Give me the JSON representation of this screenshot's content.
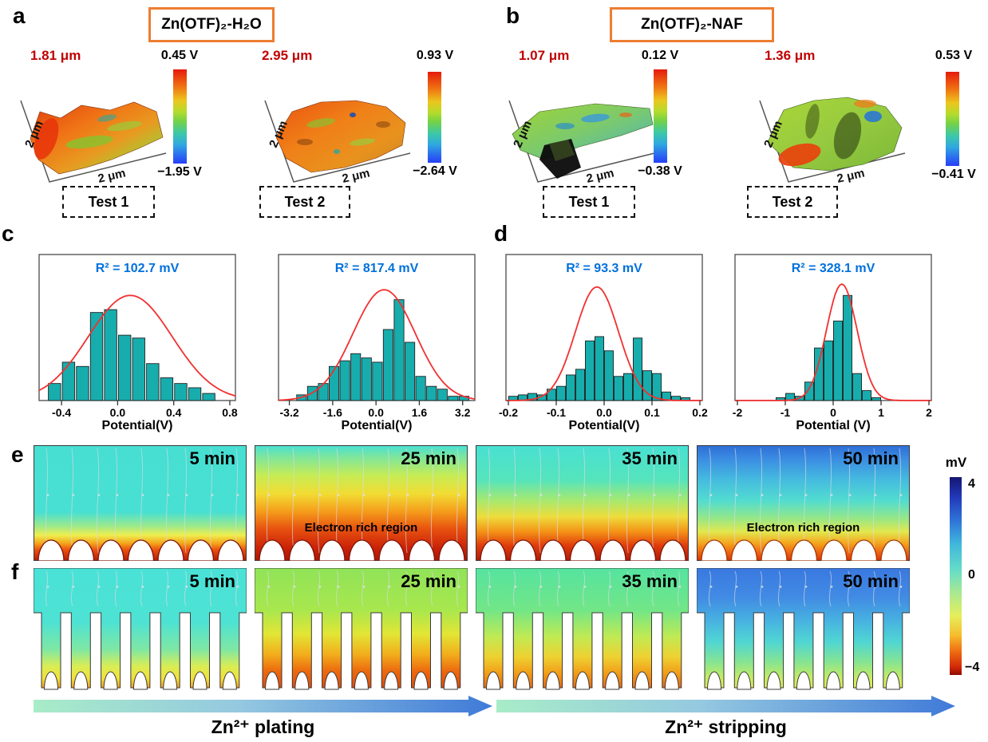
{
  "figure": {
    "letters": {
      "a": "a",
      "b": "b",
      "c": "c",
      "d": "d",
      "e": "e",
      "f": "f"
    },
    "headers": {
      "a": "Zn(OTF)₂-H₂O",
      "b": "Zn(OTF)₂-NAF"
    }
  },
  "kpfm_panels": [
    {
      "id": "a1",
      "roughness": "1.81 μm",
      "colorbar_top": "0.45 V",
      "colorbar_bottom": "−1.95 V",
      "axis_left_label": "2 μm",
      "axis_bottom_label": "2 μm",
      "test_label": "Test 1"
    },
    {
      "id": "a2",
      "roughness": "2.95 μm",
      "colorbar_top": "0.93 V",
      "colorbar_bottom": "−2.64 V",
      "axis_left_label": "2 μm",
      "axis_bottom_label": "2 μm",
      "test_label": "Test 2"
    },
    {
      "id": "b1",
      "roughness": "1.07 μm",
      "colorbar_top": "0.12 V",
      "colorbar_bottom": "−0.38 V",
      "axis_left_label": "2 μm",
      "axis_bottom_label": "2 μm",
      "test_label": "Test 1"
    },
    {
      "id": "b2",
      "roughness": "1.36 μm",
      "colorbar_top": "0.53 V",
      "colorbar_bottom": "−0.41 V",
      "axis_left_label": "2 μm",
      "axis_bottom_label": "2 μm",
      "test_label": "Test 2"
    }
  ],
  "chart_data": [
    {
      "type": "bar",
      "title": "R² = 102.7 mV",
      "xlabel": "Potential(V)",
      "xlim": [
        -0.56,
        0.84
      ],
      "ticks": [
        -0.4,
        0.0,
        0.4,
        0.8
      ],
      "tick_labels": [
        "-0.4",
        "0.0",
        "0.4",
        "0.8"
      ],
      "bar_width": 0.088,
      "bars": [
        [
          -0.45,
          0.12
        ],
        [
          -0.35,
          0.27
        ],
        [
          -0.25,
          0.24
        ],
        [
          -0.15,
          0.62
        ],
        [
          -0.05,
          0.64
        ],
        [
          0.05,
          0.46
        ],
        [
          0.15,
          0.44
        ],
        [
          0.25,
          0.26
        ],
        [
          0.35,
          0.16
        ],
        [
          0.45,
          0.12
        ],
        [
          0.55,
          0.09
        ],
        [
          0.65,
          0.05
        ]
      ],
      "gauss": {
        "mu": 0.09,
        "sigma": 0.3,
        "amp": 0.74
      },
      "ylim": [
        0,
        1
      ],
      "grid": false,
      "legend": "none"
    },
    {
      "type": "bar",
      "title": "R² = 817.4 mV",
      "xlabel": "Potential(V)",
      "xlim": [
        -3.6,
        3.65
      ],
      "ticks": [
        -3.2,
        -1.6,
        0.0,
        1.6,
        3.2
      ],
      "tick_labels": [
        "-3.2",
        "-1.6",
        "0.0",
        "1.6",
        "3.2"
      ],
      "bar_width": 0.36,
      "bars": [
        [
          -2.75,
          0.04
        ],
        [
          -2.35,
          0.1
        ],
        [
          -1.95,
          0.12
        ],
        [
          -1.55,
          0.24
        ],
        [
          -1.15,
          0.28
        ],
        [
          -0.75,
          0.33
        ],
        [
          -0.35,
          0.3
        ],
        [
          0.05,
          0.27
        ],
        [
          0.45,
          0.5
        ],
        [
          0.85,
          0.71
        ],
        [
          1.25,
          0.41
        ],
        [
          1.65,
          0.17
        ],
        [
          2.05,
          0.1
        ],
        [
          2.45,
          0.08
        ],
        [
          2.85,
          0.03
        ],
        [
          3.25,
          0.03
        ]
      ],
      "gauss": {
        "mu": 0.3,
        "sigma": 1.15,
        "amp": 0.78
      },
      "ylim": [
        0,
        1
      ],
      "grid": false,
      "legend": "none"
    },
    {
      "type": "bar",
      "title": "R² = 93.3 mV",
      "xlabel": "Potential(V)",
      "xlim": [
        -0.205,
        0.205
      ],
      "ticks": [
        -0.2,
        -0.1,
        0.0,
        0.1,
        0.2
      ],
      "tick_labels": [
        "-0.2",
        "-0.1",
        "0.0",
        "0.1",
        "0.2"
      ],
      "bar_width": 0.0185,
      "bars": [
        [
          -0.19,
          0.03
        ],
        [
          -0.17,
          0.04
        ],
        [
          -0.15,
          0.05
        ],
        [
          -0.13,
          0.04
        ],
        [
          -0.11,
          0.08
        ],
        [
          -0.09,
          0.1
        ],
        [
          -0.07,
          0.18
        ],
        [
          -0.05,
          0.22
        ],
        [
          -0.03,
          0.42
        ],
        [
          -0.01,
          0.45
        ],
        [
          0.01,
          0.35
        ],
        [
          0.03,
          0.17
        ],
        [
          0.05,
          0.19
        ],
        [
          0.07,
          0.44
        ],
        [
          0.09,
          0.21
        ],
        [
          0.11,
          0.19
        ],
        [
          0.13,
          0.06
        ],
        [
          0.15,
          0.03
        ],
        [
          0.17,
          0.02
        ]
      ],
      "gauss": {
        "mu": -0.015,
        "sigma": 0.045,
        "amp": 0.8
      },
      "ylim": [
        0,
        1
      ],
      "grid": false,
      "legend": "none"
    },
    {
      "type": "bar",
      "title": "R² = 328.1 mV",
      "xlabel": "Potential (V)",
      "xlim": [
        -2.05,
        2.05
      ],
      "ticks": [
        -2,
        -1,
        0,
        1,
        2
      ],
      "tick_labels": [
        "-2",
        "-1",
        "0",
        "1",
        "2"
      ],
      "bar_width": 0.185,
      "bars": [
        [
          -1.1,
          0.02
        ],
        [
          -0.9,
          0.05
        ],
        [
          -0.7,
          0.03
        ],
        [
          -0.5,
          0.13
        ],
        [
          -0.3,
          0.37
        ],
        [
          -0.1,
          0.42
        ],
        [
          0.1,
          0.56
        ],
        [
          0.3,
          0.74
        ],
        [
          0.5,
          0.19
        ],
        [
          0.7,
          0.07
        ],
        [
          0.9,
          0.02
        ]
      ],
      "gauss": {
        "mu": 0.18,
        "sigma": 0.32,
        "amp": 0.82
      },
      "ylim": [
        0,
        1
      ],
      "grid": false,
      "legend": "none"
    }
  ],
  "simulation": {
    "row_e": {
      "panels": [
        {
          "time": "5 min"
        },
        {
          "time": "25 min",
          "note": "Electron rich region"
        },
        {
          "time": "35 min"
        },
        {
          "time": "50 min",
          "note": "Electron rich region"
        }
      ]
    },
    "row_f": {
      "panels": [
        {
          "time": "5 min"
        },
        {
          "time": "25 min"
        },
        {
          "time": "35 min"
        },
        {
          "time": "50 min"
        }
      ]
    },
    "colorbar": {
      "unit": "mV",
      "tick_top": "4",
      "tick_mid": "0",
      "tick_bottom": "−4"
    },
    "arrows": [
      {
        "label": "Zn²⁺ plating"
      },
      {
        "label": "Zn²⁺ stripping"
      }
    ]
  },
  "colors": {
    "accent_orange": "#ED7D31",
    "label_red": "#C00000",
    "stat_blue": "#0070DD",
    "bar_teal": "#17ADAD",
    "curve_red": "#F23030"
  }
}
